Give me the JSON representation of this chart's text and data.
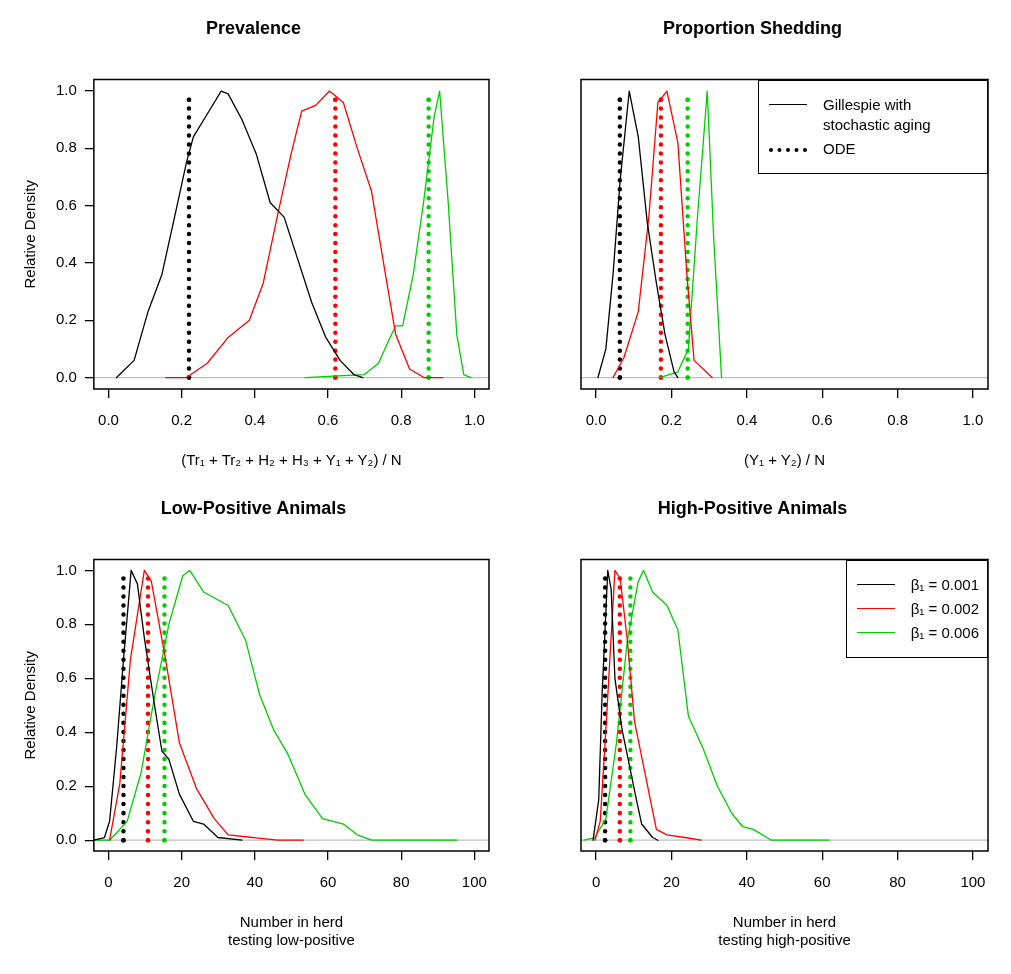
{
  "chart_data": [
    {
      "type": "line",
      "title": "Prevalence",
      "xlabel": "(Tr₁ + Tr₂ + H₂ + H₃ + Y₁ + Y₂) / N",
      "ylabel": "Relative Density",
      "xlim": [
        -0.04,
        1.04
      ],
      "ylim": [
        -0.04,
        1.04
      ],
      "xticks": [
        {
          "value": 0,
          "label": "0.0"
        },
        {
          "value": 0.2,
          "label": "0.2"
        },
        {
          "value": 0.4,
          "label": "0.4"
        },
        {
          "value": 0.6,
          "label": "0.6"
        },
        {
          "value": 0.8,
          "label": "0.8"
        },
        {
          "value": 1,
          "label": "1.0"
        }
      ],
      "yticks": [
        {
          "value": 0,
          "label": "0.0"
        },
        {
          "value": 0.2,
          "label": "0.2"
        },
        {
          "value": 0.4,
          "label": "0.4"
        },
        {
          "value": 0.6,
          "label": "0.6"
        },
        {
          "value": 0.8,
          "label": "0.8"
        },
        {
          "value": 1,
          "label": "1.0"
        }
      ],
      "grid": false,
      "legend": false,
      "marker": "none",
      "ref_lines": [
        {
          "axis": "y",
          "value": 0,
          "color": "#bebebe"
        }
      ],
      "series": [
        {
          "color": "#000000",
          "line_style": "solid",
          "x": [
            0.022,
            0.07,
            0.108,
            0.146,
            0.184,
            0.213,
            0.232,
            0.27,
            0.308,
            0.327,
            0.365,
            0.404,
            0.442,
            0.48,
            0.518,
            0.556,
            0.594,
            0.633,
            0.671,
            0.695
          ],
          "values": [
            0,
            0.06,
            0.23,
            0.36,
            0.58,
            0.75,
            0.84,
            0.92,
            1,
            0.99,
            0.9,
            0.78,
            0.61,
            0.56,
            0.41,
            0.26,
            0.14,
            0.06,
            0.01,
            0
          ]
        },
        {
          "color": "#ff0000",
          "line_style": "solid",
          "x": [
            0.156,
            0.213,
            0.27,
            0.327,
            0.385,
            0.423,
            0.461,
            0.499,
            0.528,
            0.566,
            0.604,
            0.642,
            0.68,
            0.719,
            0.757,
            0.785,
            0.823,
            0.862,
            0.914
          ],
          "values": [
            0,
            0,
            0.05,
            0.14,
            0.2,
            0.33,
            0.56,
            0.78,
            0.93,
            0.95,
            1,
            0.96,
            0.8,
            0.65,
            0.36,
            0.15,
            0.03,
            0,
            0
          ]
        },
        {
          "color": "#00cd00",
          "line_style": "solid",
          "x": [
            0.537,
            0.614,
            0.699,
            0.738,
            0.766,
            0.785,
            0.804,
            0.833,
            0.862,
            0.89,
            0.905,
            0.928,
            0.952,
            0.971,
            0.99
          ],
          "values": [
            0,
            0.005,
            0.01,
            0.05,
            0.13,
            0.18,
            0.18,
            0.36,
            0.62,
            0.91,
            1,
            0.62,
            0.15,
            0.01,
            0
          ]
        },
        {
          "color": "#000000",
          "line_style": "dotted",
          "x": [
            0.22,
            0.22
          ],
          "values": [
            0,
            0.97
          ]
        },
        {
          "color": "#ff0000",
          "line_style": "dotted",
          "x": [
            0.62,
            0.62
          ],
          "values": [
            0,
            0.97
          ]
        },
        {
          "color": "#00cd00",
          "line_style": "dotted",
          "x": [
            0.875,
            0.875
          ],
          "values": [
            0,
            0.97
          ]
        }
      ]
    },
    {
      "type": "line",
      "title": "Proportion Shedding",
      "xlabel": "(Y₁ + Y₂) / N",
      "xlim": [
        -0.04,
        1.04
      ],
      "ylim": [
        -0.04,
        1.04
      ],
      "tick_labels": "x",
      "xticks": [
        {
          "value": 0,
          "label": "0.0"
        },
        {
          "value": 0.2,
          "label": "0.2"
        },
        {
          "value": 0.4,
          "label": "0.4"
        },
        {
          "value": 0.6,
          "label": "0.6"
        },
        {
          "value": 0.8,
          "label": "0.8"
        },
        {
          "value": 1,
          "label": "1.0"
        }
      ],
      "grid": false,
      "legend": "top right",
      "marker": "none",
      "ref_lines": [
        {
          "axis": "y",
          "value": 0,
          "color": "#bebebe"
        }
      ],
      "series": [
        {
          "name": "Gillespie with stochastic aging",
          "color": "#000000",
          "line_style": "solid",
          "x": [
            0.005,
            0.026,
            0.045,
            0.064,
            0.088,
            0.112,
            0.136,
            0.16,
            0.183,
            0.207,
            0.217
          ],
          "values": [
            0,
            0.1,
            0.36,
            0.69,
            1,
            0.84,
            0.54,
            0.33,
            0.15,
            0.02,
            0
          ]
        },
        {
          "color": "#ff0000",
          "line_style": "solid",
          "x": [
            0.045,
            0.074,
            0.112,
            0.14,
            0.164,
            0.188,
            0.217,
            0.241,
            0.26,
            0.308
          ],
          "values": [
            0,
            0.07,
            0.23,
            0.56,
            0.96,
            1,
            0.82,
            0.36,
            0.06,
            0
          ]
        },
        {
          "color": "#00cd00",
          "line_style": "solid",
          "x": [
            0.169,
            0.217,
            0.245,
            0.269,
            0.295,
            0.312,
            0.333
          ],
          "values": [
            0,
            0.02,
            0.1,
            0.56,
            1,
            0.49,
            0
          ]
        },
        {
          "name": "ODE",
          "color": "#000000",
          "line_style": "dotted",
          "x": [
            0.063,
            0.063
          ],
          "values": [
            0,
            0.97
          ]
        },
        {
          "color": "#ff0000",
          "line_style": "dotted",
          "x": [
            0.172,
            0.172
          ],
          "values": [
            0,
            0.97
          ]
        },
        {
          "color": "#00cd00",
          "line_style": "dotted",
          "x": [
            0.243,
            0.243
          ],
          "values": [
            0,
            0.97
          ]
        }
      ]
    },
    {
      "type": "line",
      "title": "Low-Positive Animals",
      "xlabel": "Number in herd\ntesting low-positive",
      "ylabel": "Relative Density",
      "xlim": [
        -4,
        104
      ],
      "ylim": [
        -0.04,
        1.04
      ],
      "xticks": [
        0,
        20,
        40,
        60,
        80,
        100
      ],
      "yticks": [
        {
          "value": 0,
          "label": "0.0"
        },
        {
          "value": 0.2,
          "label": "0.2"
        },
        {
          "value": 0.4,
          "label": "0.4"
        },
        {
          "value": 0.6,
          "label": "0.6"
        },
        {
          "value": 0.8,
          "label": "0.8"
        },
        {
          "value": 1,
          "label": "1.0"
        }
      ],
      "grid": false,
      "legend": false,
      "marker": "none",
      "ref_lines": [
        {
          "axis": "y",
          "value": 0,
          "color": "#bebebe"
        }
      ],
      "series": [
        {
          "color": "#000000",
          "line_style": "solid",
          "x": [
            -4,
            -1.1,
            0.3,
            2.2,
            4.1,
            6.2,
            7.9,
            9.8,
            12.7,
            14.6,
            16.5,
            19.4,
            23.2,
            26,
            29.9,
            36.5
          ],
          "values": [
            0,
            0.01,
            0.07,
            0.34,
            0.67,
            1,
            0.95,
            0.75,
            0.49,
            0.33,
            0.3,
            0.17,
            0.07,
            0.06,
            0.01,
            0
          ]
        },
        {
          "color": "#ff0000",
          "line_style": "solid",
          "x": [
            0.3,
            3.1,
            6,
            9.8,
            11.7,
            15.6,
            19.4,
            24.1,
            28.9,
            32.7,
            39.4,
            46.1,
            53.2
          ],
          "values": [
            0,
            0.21,
            0.67,
            1,
            0.96,
            0.67,
            0.36,
            0.19,
            0.08,
            0.02,
            0.01,
            0,
            0
          ]
        },
        {
          "color": "#00cd00",
          "line_style": "solid",
          "x": [
            -4,
            0.3,
            5.1,
            8.9,
            12.7,
            16.5,
            20.3,
            22.2,
            26,
            32.7,
            37.5,
            41.3,
            45.1,
            49,
            53.7,
            58.5,
            64.2,
            68,
            71.9,
            95.2
          ],
          "values": [
            0,
            0,
            0.07,
            0.25,
            0.54,
            0.8,
            0.98,
            1,
            0.92,
            0.87,
            0.74,
            0.54,
            0.41,
            0.32,
            0.17,
            0.08,
            0.06,
            0.02,
            0,
            0
          ]
        },
        {
          "color": "#000000",
          "line_style": "dotted",
          "x": [
            4.1,
            4.1
          ],
          "values": [
            0,
            0.97
          ]
        },
        {
          "color": "#ff0000",
          "line_style": "dotted",
          "x": [
            10.8,
            10.8
          ],
          "values": [
            0,
            0.97
          ]
        },
        {
          "color": "#00cd00",
          "line_style": "dotted",
          "x": [
            15.3,
            15.3
          ],
          "values": [
            0,
            0.97
          ]
        }
      ]
    },
    {
      "type": "line",
      "title": "High-Positive Animals",
      "xlabel": "Number in herd\ntesting high-positive",
      "xlim": [
        -4,
        104
      ],
      "ylim": [
        -0.04,
        1.04
      ],
      "tick_labels": "x",
      "xticks": [
        0,
        20,
        40,
        60,
        80,
        100
      ],
      "grid": false,
      "legend": "top right",
      "marker": "none",
      "ref_lines": [
        {
          "axis": "y",
          "value": 0,
          "color": "#bebebe"
        }
      ],
      "series": [
        {
          "name": "β₁ = 0.001",
          "color": "#000000",
          "line_style": "solid",
          "x": [
            -0.8,
            0.7,
            1.6,
            3.1,
            4,
            5,
            6.9,
            8.8,
            10.7,
            12.1,
            15,
            16.4
          ],
          "values": [
            0,
            0.15,
            0.54,
            1,
            0.93,
            0.6,
            0.41,
            0.28,
            0.15,
            0.06,
            0.01,
            0
          ]
        },
        {
          "name": "β₁ = 0.002",
          "color": "#ff0000",
          "line_style": "solid",
          "x": [
            -0.3,
            1.1,
            2.6,
            5,
            6.4,
            8.3,
            10.2,
            13.1,
            16,
            18.8,
            23.6,
            27.9
          ],
          "values": [
            0,
            0.07,
            0.41,
            1,
            0.97,
            0.74,
            0.44,
            0.24,
            0.04,
            0.02,
            0.01,
            0
          ]
        },
        {
          "name": "β₁ = 0.006",
          "color": "#00cd00",
          "line_style": "solid",
          "x": [
            -3.2,
            -0.3,
            2.6,
            5.4,
            8.3,
            11.2,
            12.6,
            15,
            18.8,
            21.7,
            24.5,
            28.4,
            32.2,
            36,
            38.9,
            41.7,
            46.5,
            61.8
          ],
          "values": [
            0,
            0.01,
            0.08,
            0.36,
            0.74,
            0.96,
            1,
            0.92,
            0.87,
            0.78,
            0.46,
            0.34,
            0.2,
            0.1,
            0.05,
            0.04,
            0,
            0
          ]
        },
        {
          "color": "#000000",
          "line_style": "dotted",
          "x": [
            2.4,
            2.4
          ],
          "values": [
            0,
            0.97
          ]
        },
        {
          "color": "#ff0000",
          "line_style": "dotted",
          "x": [
            6.3,
            6.3
          ],
          "values": [
            0,
            0.97
          ]
        },
        {
          "color": "#00cd00",
          "line_style": "dotted",
          "x": [
            9.1,
            9.1
          ],
          "values": [
            0,
            0.97
          ]
        }
      ]
    }
  ]
}
